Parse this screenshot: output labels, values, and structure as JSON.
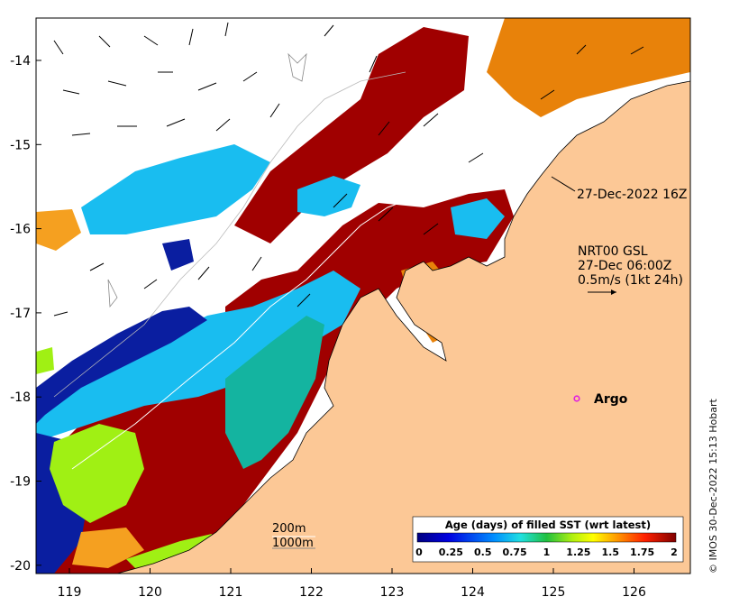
{
  "map": {
    "lat_ticks": [
      "-14",
      "-15",
      "-16",
      "-17",
      "-18",
      "-19",
      "-20"
    ],
    "lon_ticks": [
      "119",
      "120",
      "121",
      "122",
      "123",
      "124",
      "125",
      "126"
    ],
    "time_label": "27-Dec-2022 16Z",
    "current_info": [
      "NRT00 GSL",
      "27-Dec 06:00Z",
      "0.5m/s (1kt 24h)"
    ],
    "argo_label": "Argo",
    "contour_labels": [
      "200m",
      "1000m"
    ],
    "credit": "© IMOS 30-Dec-2022 15:13 Hobart"
  },
  "legend": {
    "title": "Age (days) of filled SST (wrt latest)",
    "ticks": [
      "0",
      "0.25",
      "0.5",
      "0.75",
      "1",
      "1.25",
      "1.5",
      "1.75",
      "2"
    ]
  },
  "colors": {
    "land": "#fcc896",
    "dark_red": "#a00000",
    "orange": "#e8820a",
    "light_orange": "#f5a020",
    "cyan": "#19bdf0",
    "dark_blue": "#0a1ea0",
    "teal": "#14b4a0",
    "lime": "#a0f014",
    "argo": "#e020e0"
  }
}
